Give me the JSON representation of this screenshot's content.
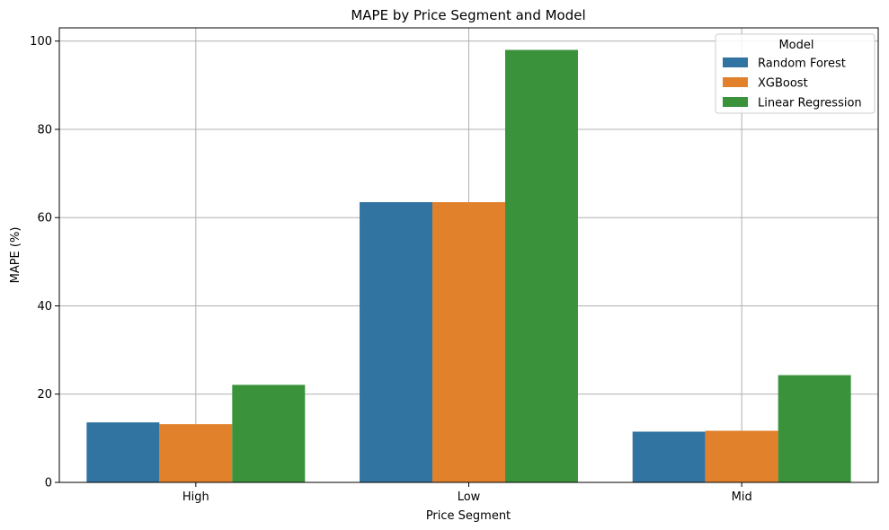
{
  "chart_data": {
    "type": "bar",
    "title": "MAPE by Price Segment and Model",
    "xlabel": "Price Segment",
    "ylabel": "MAPE (%)",
    "categories": [
      "High",
      "Low",
      "Mid"
    ],
    "series": [
      {
        "name": "Random Forest",
        "color": "#3274a1",
        "values": [
          13.6,
          63.5,
          11.5
        ]
      },
      {
        "name": "XGBoost",
        "color": "#e1812c",
        "values": [
          13.2,
          63.5,
          11.7
        ]
      },
      {
        "name": "Linear Regression",
        "color": "#3a923a",
        "values": [
          22.1,
          98.0,
          24.3
        ]
      }
    ],
    "ylim": [
      0,
      103
    ],
    "yticks": [
      0,
      20,
      40,
      60,
      80,
      100
    ],
    "grid": true,
    "legend": {
      "title": "Model",
      "position": "top-right"
    }
  }
}
